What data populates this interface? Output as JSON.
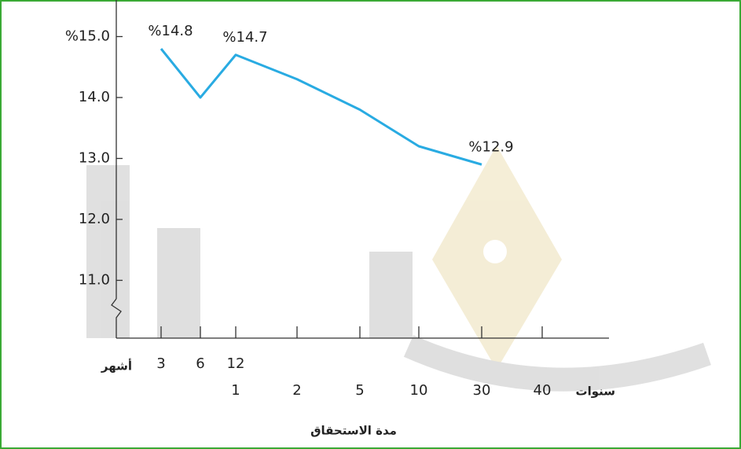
{
  "chart_data": {
    "type": "line",
    "x_title": "مدة الاستحقاق",
    "month_axis_label": "أشهر",
    "year_axis_label": "سنوات",
    "month_labels": [
      "3",
      "6",
      "12",
      null,
      null,
      null,
      null,
      null
    ],
    "year_labels": [
      null,
      null,
      "1",
      "2",
      "5",
      "10",
      "30",
      "40"
    ],
    "values": [
      14.8,
      14.0,
      14.7,
      14.3,
      13.8,
      13.2,
      12.9,
      null
    ],
    "value_labels": [
      "%14.8",
      null,
      "%14.7",
      null,
      null,
      null,
      "%12.9",
      null
    ],
    "color": "#29abe2",
    "ylim": [
      10,
      15.6
    ],
    "yticks": [
      {
        "value": 15,
        "label": "%15.0"
      },
      {
        "value": 14,
        "label": "14.0"
      },
      {
        "value": 13,
        "label": "13.0"
      },
      {
        "value": 12,
        "label": "12.0"
      },
      {
        "value": 11,
        "label": "11.0"
      }
    ]
  }
}
